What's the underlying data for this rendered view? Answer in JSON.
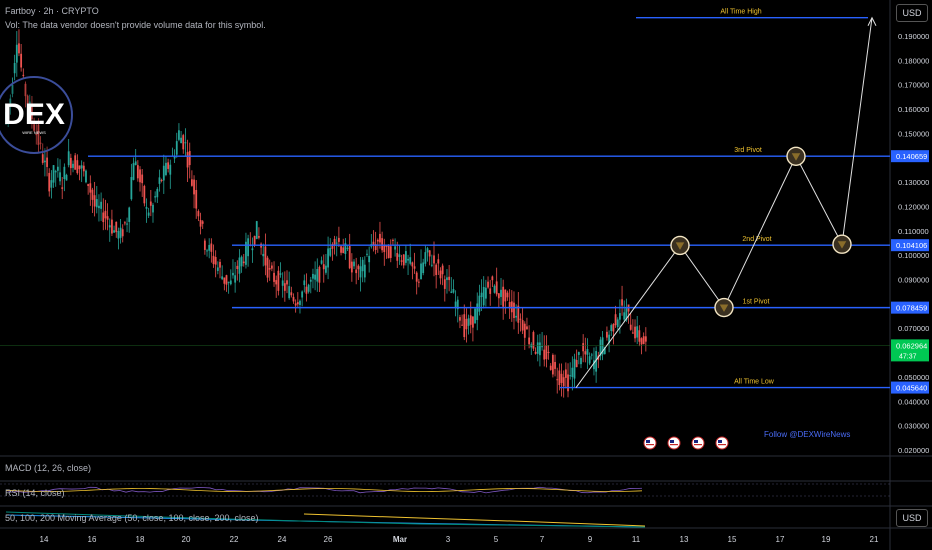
{
  "header": {
    "symbol_line": "Fartboy · 2h · CRYPTO",
    "vol_line": "Vol: The data vendor doesn't provide volume data for this symbol.",
    "currency": "USD",
    "currency_bottom": "USD"
  },
  "logo": {
    "text": "DEX",
    "sub": "WIRE NEWS"
  },
  "follow_text": "Follow @DEXWireNews",
  "indicators": {
    "macd": "MACD (12, 26, close)",
    "rsi": "RSI (14, close)",
    "ma": "50, 100, 200 Moving Average (50, close, 100, close, 200, close)"
  },
  "colors": {
    "background": "#000000",
    "up": "#26a69a",
    "down": "#ef5350",
    "level_line": "#2962ff",
    "annotation": "#f0c330",
    "projection": "#e0e0e0",
    "price_tag": "#00c853"
  },
  "chart_data": {
    "type": "candlestick",
    "title": "Fartboy · 2h · CRYPTO",
    "ylim": [
      0.02,
      0.2
    ],
    "y_ticks": [
      "0.190000",
      "0.180000",
      "0.170000",
      "0.160000",
      "0.150000",
      "0.140000",
      "0.130000",
      "0.120000",
      "0.110000",
      "0.100000",
      "0.090000",
      "0.080000",
      "0.070000",
      "0.060000",
      "0.050000",
      "0.040000",
      "0.030000",
      "0.020000"
    ],
    "x_ticks": [
      "14",
      "16",
      "18",
      "20",
      "22",
      "24",
      "26",
      "Mar",
      "3",
      "5",
      "7",
      "9",
      "11",
      "13",
      "15",
      "17",
      "19",
      "21"
    ],
    "levels": [
      {
        "label": "All Time High",
        "value": 0.1975,
        "tag": ""
      },
      {
        "label": "3rd Pivot",
        "value": 0.140659,
        "tag": "0.140659"
      },
      {
        "label": "2nd Pivot",
        "value": 0.104106,
        "tag": "0.104106"
      },
      {
        "label": "1st Pivot",
        "value": 0.078459,
        "tag": "0.078459"
      },
      {
        "label": "All Time Low",
        "value": 0.04564,
        "tag": "0.045640"
      }
    ],
    "current_price": {
      "value": 0.06296,
      "tag": "0.062964",
      "countdown": "47:37"
    },
    "price_path": [
      [
        0,
        0.155
      ],
      [
        1,
        0.165
      ],
      [
        2,
        0.19
      ],
      [
        3,
        0.17
      ],
      [
        4,
        0.16
      ],
      [
        5,
        0.15
      ],
      [
        6,
        0.14
      ],
      [
        7,
        0.13
      ],
      [
        8,
        0.135
      ],
      [
        9,
        0.13
      ],
      [
        10,
        0.14
      ],
      [
        11,
        0.138
      ],
      [
        12,
        0.135
      ],
      [
        13,
        0.13
      ],
      [
        14,
        0.12
      ],
      [
        15,
        0.118
      ],
      [
        16,
        0.115
      ],
      [
        17,
        0.11
      ],
      [
        18,
        0.108
      ],
      [
        19,
        0.115
      ],
      [
        20,
        0.14
      ],
      [
        21,
        0.13
      ],
      [
        22,
        0.118
      ],
      [
        23,
        0.12
      ],
      [
        24,
        0.13
      ],
      [
        25,
        0.135
      ],
      [
        26,
        0.14
      ],
      [
        27,
        0.15
      ],
      [
        28,
        0.145
      ],
      [
        29,
        0.13
      ],
      [
        30,
        0.118
      ],
      [
        31,
        0.105
      ],
      [
        32,
        0.1
      ],
      [
        33,
        0.095
      ],
      [
        34,
        0.09
      ],
      [
        35,
        0.088
      ],
      [
        36,
        0.095
      ],
      [
        37,
        0.1
      ],
      [
        38,
        0.105
      ],
      [
        39,
        0.11
      ],
      [
        40,
        0.1
      ],
      [
        41,
        0.092
      ],
      [
        42,
        0.09
      ],
      [
        43,
        0.088
      ],
      [
        44,
        0.085
      ],
      [
        45,
        0.082
      ],
      [
        46,
        0.085
      ],
      [
        47,
        0.088
      ],
      [
        48,
        0.09
      ],
      [
        49,
        0.094
      ],
      [
        50,
        0.1
      ],
      [
        51,
        0.108
      ],
      [
        52,
        0.104
      ],
      [
        53,
        0.1
      ],
      [
        54,
        0.094
      ],
      [
        55,
        0.092
      ],
      [
        56,
        0.1
      ],
      [
        57,
        0.104
      ],
      [
        58,
        0.106
      ],
      [
        59,
        0.1
      ],
      [
        60,
        0.104
      ],
      [
        61,
        0.1
      ],
      [
        62,
        0.098
      ],
      [
        63,
        0.094
      ],
      [
        64,
        0.09
      ],
      [
        65,
        0.1
      ],
      [
        66,
        0.098
      ],
      [
        67,
        0.094
      ],
      [
        68,
        0.09
      ],
      [
        69,
        0.085
      ],
      [
        70,
        0.078
      ],
      [
        71,
        0.07
      ],
      [
        72,
        0.072
      ],
      [
        73,
        0.078
      ],
      [
        74,
        0.085
      ],
      [
        75,
        0.088
      ],
      [
        76,
        0.086
      ],
      [
        77,
        0.082
      ],
      [
        78,
        0.08
      ],
      [
        79,
        0.076
      ],
      [
        80,
        0.072
      ],
      [
        81,
        0.066
      ],
      [
        82,
        0.062
      ],
      [
        83,
        0.06
      ],
      [
        84,
        0.058
      ],
      [
        85,
        0.052
      ],
      [
        86,
        0.05
      ],
      [
        87,
        0.048
      ],
      [
        88,
        0.055
      ],
      [
        89,
        0.06
      ],
      [
        90,
        0.058
      ],
      [
        91,
        0.056
      ],
      [
        92,
        0.062
      ],
      [
        93,
        0.066
      ],
      [
        94,
        0.072
      ],
      [
        95,
        0.078
      ],
      [
        96,
        0.076
      ],
      [
        97,
        0.07
      ],
      [
        98,
        0.066
      ],
      [
        99,
        0.063
      ]
    ],
    "projection_path": [
      [
        0,
        0.0456
      ],
      [
        1,
        0.104
      ],
      [
        2,
        0.0785
      ],
      [
        3,
        0.1406
      ],
      [
        4,
        0.1045
      ],
      [
        5,
        0.1975
      ]
    ],
    "oscillators": [
      "MACD (12, 26, close)",
      "RSI (14, close)",
      "50, 100, 200 Moving Average (50, close, 100, close, 200, close)"
    ]
  }
}
